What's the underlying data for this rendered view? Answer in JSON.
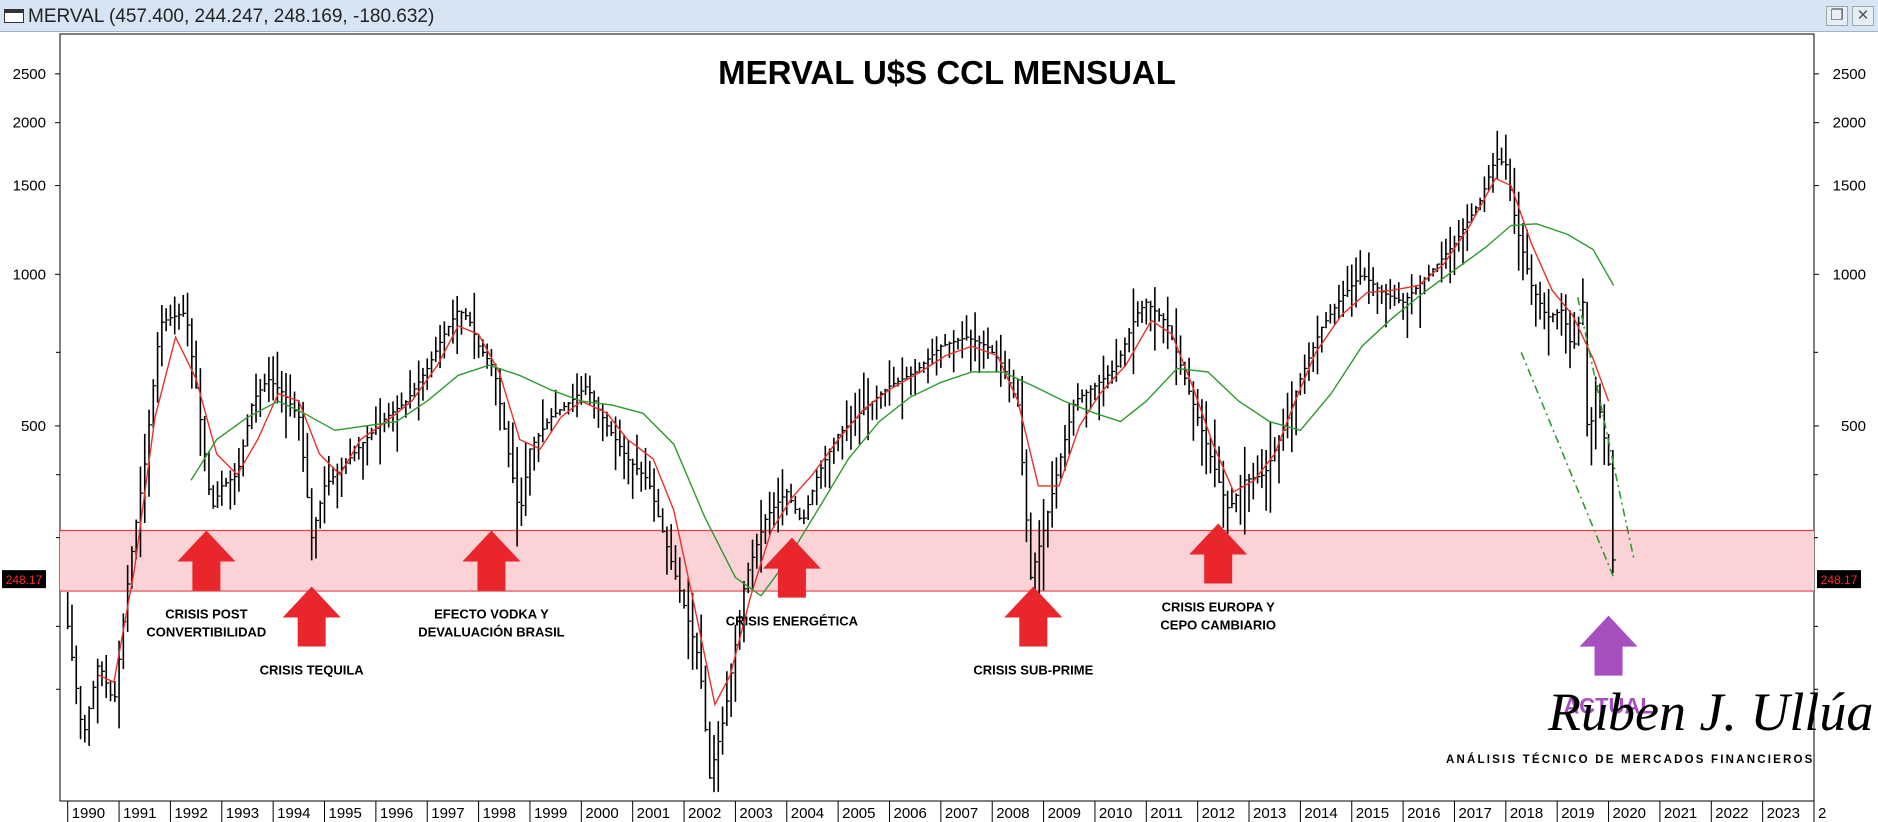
{
  "window": {
    "title": "MERVAL (457.400, 244.247, 248.169, -180.632)",
    "restore_glyph": "❐",
    "close_glyph": "✕"
  },
  "chart_data": {
    "type": "bar",
    "subtype": "ohlc-monthly-log",
    "title": "MERVAL U$S CCL MENSUAL",
    "xlabel": "",
    "ylabel": "",
    "y_scale": "log",
    "ylim": [
      90,
      3000
    ],
    "xlim": [
      1989.85,
      2024.0
    ],
    "y_ticks": [
      500,
      1000,
      1500,
      2000,
      2500
    ],
    "x_ticks": [
      "1990",
      "1991",
      "1992",
      "1993",
      "1994",
      "1995",
      "1996",
      "1997",
      "1998",
      "1999",
      "2000",
      "2001",
      "2002",
      "2003",
      "2004",
      "2005",
      "2006",
      "2007",
      "2008",
      "2009",
      "2010",
      "2011",
      "2012",
      "2013",
      "2014",
      "2015",
      "2016",
      "2017",
      "2018",
      "2019",
      "2020",
      "2021",
      "2022",
      "2023",
      "2"
    ],
    "last_value_label": "248.17",
    "support_band": [
      235,
      310
    ],
    "series": [
      {
        "name": "Price (monthly close)",
        "color": "#000000",
        "points": [
          [
            1990.0,
            200
          ],
          [
            1990.3,
            120
          ],
          [
            1990.6,
            170
          ],
          [
            1990.9,
            140
          ],
          [
            1991.2,
            260
          ],
          [
            1991.5,
            420
          ],
          [
            1991.8,
            800
          ],
          [
            1992.0,
            820
          ],
          [
            1992.3,
            840
          ],
          [
            1992.6,
            500
          ],
          [
            1992.8,
            340
          ],
          [
            1993.0,
            380
          ],
          [
            1993.3,
            400
          ],
          [
            1993.6,
            560
          ],
          [
            1993.9,
            620
          ],
          [
            1994.2,
            580
          ],
          [
            1994.5,
            520
          ],
          [
            1994.75,
            300
          ],
          [
            1995.0,
            380
          ],
          [
            1995.4,
            420
          ],
          [
            1995.8,
            470
          ],
          [
            1996.2,
            520
          ],
          [
            1996.6,
            560
          ],
          [
            1997.0,
            650
          ],
          [
            1997.3,
            750
          ],
          [
            1997.6,
            850
          ],
          [
            1997.8,
            820
          ],
          [
            1998.0,
            720
          ],
          [
            1998.3,
            650
          ],
          [
            1998.6,
            430
          ],
          [
            1998.8,
            330
          ],
          [
            1999.0,
            450
          ],
          [
            1999.4,
            520
          ],
          [
            1999.8,
            560
          ],
          [
            2000.1,
            600
          ],
          [
            2000.5,
            500
          ],
          [
            2000.9,
            430
          ],
          [
            2001.3,
            390
          ],
          [
            2001.7,
            280
          ],
          [
            2002.0,
            220
          ],
          [
            2002.3,
            170
          ],
          [
            2002.5,
            100
          ],
          [
            2002.8,
            135
          ],
          [
            2003.2,
            250
          ],
          [
            2003.6,
            330
          ],
          [
            2004.0,
            370
          ],
          [
            2004.3,
            320
          ],
          [
            2004.6,
            400
          ],
          [
            2005.0,
            480
          ],
          [
            2005.5,
            540
          ],
          [
            2006.0,
            600
          ],
          [
            2006.5,
            640
          ],
          [
            2007.0,
            720
          ],
          [
            2007.5,
            750
          ],
          [
            2007.9,
            720
          ],
          [
            2008.2,
            660
          ],
          [
            2008.5,
            550
          ],
          [
            2008.75,
            250
          ],
          [
            2009.0,
            310
          ],
          [
            2009.3,
            420
          ],
          [
            2009.6,
            560
          ],
          [
            2010.0,
            600
          ],
          [
            2010.4,
            650
          ],
          [
            2010.8,
            830
          ],
          [
            2011.0,
            880
          ],
          [
            2011.4,
            800
          ],
          [
            2011.8,
            600
          ],
          [
            2012.2,
            450
          ],
          [
            2012.6,
            340
          ],
          [
            2012.9,
            390
          ],
          [
            2013.3,
            400
          ],
          [
            2013.7,
            500
          ],
          [
            2014.0,
            620
          ],
          [
            2014.4,
            780
          ],
          [
            2014.8,
            900
          ],
          [
            2015.2,
            1000
          ],
          [
            2015.6,
            920
          ],
          [
            2016.0,
            880
          ],
          [
            2016.5,
            1000
          ],
          [
            2017.0,
            1150
          ],
          [
            2017.5,
            1400
          ],
          [
            2017.8,
            1700
          ],
          [
            2018.0,
            1650
          ],
          [
            2018.2,
            1250
          ],
          [
            2018.5,
            950
          ],
          [
            2018.8,
            820
          ],
          [
            2019.1,
            850
          ],
          [
            2019.3,
            700
          ],
          [
            2019.5,
            880
          ],
          [
            2019.6,
            450
          ],
          [
            2019.75,
            600
          ],
          [
            2020.0,
            420
          ],
          [
            2020.1,
            248.17
          ]
        ]
      },
      {
        "name": "Moving average (short)",
        "color": "#e8312a",
        "points": [
          [
            1990.6,
            160
          ],
          [
            1990.9,
            155
          ],
          [
            1991.3,
            260
          ],
          [
            1991.7,
            520
          ],
          [
            1992.1,
            750
          ],
          [
            1992.5,
            620
          ],
          [
            1992.9,
            440
          ],
          [
            1993.3,
            400
          ],
          [
            1993.7,
            470
          ],
          [
            1994.1,
            580
          ],
          [
            1994.5,
            560
          ],
          [
            1994.9,
            440
          ],
          [
            1995.3,
            400
          ],
          [
            1995.7,
            470
          ],
          [
            1996.2,
            510
          ],
          [
            1996.7,
            560
          ],
          [
            1997.2,
            660
          ],
          [
            1997.6,
            790
          ],
          [
            1998.0,
            760
          ],
          [
            1998.4,
            640
          ],
          [
            1998.8,
            470
          ],
          [
            1999.2,
            450
          ],
          [
            1999.6,
            520
          ],
          [
            2000.0,
            560
          ],
          [
            2000.5,
            530
          ],
          [
            2000.9,
            470
          ],
          [
            2001.4,
            430
          ],
          [
            2001.8,
            340
          ],
          [
            2002.2,
            220
          ],
          [
            2002.6,
            140
          ],
          [
            2002.9,
            160
          ],
          [
            2003.3,
            230
          ],
          [
            2003.7,
            310
          ],
          [
            2004.1,
            360
          ],
          [
            2004.5,
            400
          ],
          [
            2005.0,
            470
          ],
          [
            2005.5,
            540
          ],
          [
            2006.0,
            590
          ],
          [
            2006.6,
            640
          ],
          [
            2007.1,
            690
          ],
          [
            2007.6,
            720
          ],
          [
            2008.1,
            690
          ],
          [
            2008.5,
            560
          ],
          [
            2008.9,
            380
          ],
          [
            2009.3,
            380
          ],
          [
            2009.7,
            500
          ],
          [
            2010.1,
            580
          ],
          [
            2010.6,
            660
          ],
          [
            2011.1,
            810
          ],
          [
            2011.5,
            760
          ],
          [
            2011.9,
            600
          ],
          [
            2012.3,
            460
          ],
          [
            2012.7,
            370
          ],
          [
            2013.1,
            390
          ],
          [
            2013.5,
            440
          ],
          [
            2013.9,
            560
          ],
          [
            2014.3,
            700
          ],
          [
            2014.8,
            830
          ],
          [
            2015.3,
            920
          ],
          [
            2015.8,
            930
          ],
          [
            2016.3,
            950
          ],
          [
            2016.8,
            1050
          ],
          [
            2017.3,
            1250
          ],
          [
            2017.8,
            1550
          ],
          [
            2018.1,
            1500
          ],
          [
            2018.5,
            1150
          ],
          [
            2018.9,
            930
          ],
          [
            2019.3,
            830
          ],
          [
            2019.7,
            680
          ],
          [
            2020.0,
            560
          ]
        ]
      },
      {
        "name": "Moving average (long)",
        "color": "#2e9a2e",
        "points": [
          [
            1992.4,
            390
          ],
          [
            1992.9,
            470
          ],
          [
            1993.5,
            520
          ],
          [
            1994.1,
            560
          ],
          [
            1994.6,
            530
          ],
          [
            1995.2,
            490
          ],
          [
            1995.8,
            500
          ],
          [
            1996.4,
            510
          ],
          [
            1997.0,
            560
          ],
          [
            1997.6,
            630
          ],
          [
            1998.2,
            660
          ],
          [
            1998.8,
            630
          ],
          [
            1999.4,
            590
          ],
          [
            2000.0,
            560
          ],
          [
            2000.6,
            550
          ],
          [
            2001.2,
            530
          ],
          [
            2001.8,
            460
          ],
          [
            2002.4,
            330
          ],
          [
            2003.0,
            250
          ],
          [
            2003.5,
            230
          ],
          [
            2004.0,
            270
          ],
          [
            2004.6,
            340
          ],
          [
            2005.2,
            430
          ],
          [
            2005.8,
            510
          ],
          [
            2006.4,
            570
          ],
          [
            2007.0,
            610
          ],
          [
            2007.6,
            640
          ],
          [
            2008.2,
            640
          ],
          [
            2008.8,
            600
          ],
          [
            2009.4,
            560
          ],
          [
            2010.0,
            530
          ],
          [
            2010.5,
            510
          ],
          [
            2011.0,
            560
          ],
          [
            2011.6,
            650
          ],
          [
            2012.2,
            640
          ],
          [
            2012.8,
            560
          ],
          [
            2013.4,
            510
          ],
          [
            2014.0,
            490
          ],
          [
            2014.6,
            580
          ],
          [
            2015.2,
            720
          ],
          [
            2015.8,
            820
          ],
          [
            2016.4,
            920
          ],
          [
            2017.0,
            1020
          ],
          [
            2017.6,
            1130
          ],
          [
            2018.1,
            1250
          ],
          [
            2018.6,
            1260
          ],
          [
            2019.2,
            1200
          ],
          [
            2019.7,
            1120
          ],
          [
            2020.1,
            950
          ]
        ]
      }
    ],
    "trendlines": [
      {
        "name": "dash-dot-1",
        "color": "#2e9a2e",
        "points": [
          [
            2018.3,
            700
          ],
          [
            2020.1,
            250
          ]
        ]
      },
      {
        "name": "dash-dot-2",
        "color": "#2e9a2e",
        "points": [
          [
            2019.4,
            900
          ],
          [
            2020.5,
            270
          ]
        ]
      }
    ],
    "annotations": [
      {
        "lines": [
          "CRISIS POST",
          "CONVERTIBILIDAD"
        ],
        "x": 1992.7,
        "arrow": "up",
        "color": "#e8262b",
        "arrow_y": 310
      },
      {
        "lines": [
          "CRISIS TEQUILA"
        ],
        "x": 1994.75,
        "arrow": "up",
        "color": "#e8262b",
        "arrow_y": 240
      },
      {
        "lines": [
          "EFECTO VODKA Y",
          "DEVALUACIÓN BRASIL"
        ],
        "x": 1998.25,
        "arrow": "up",
        "color": "#e8262b",
        "arrow_y": 310
      },
      {
        "lines": [
          "CRISIS ENERGÉTICA"
        ],
        "x": 2004.1,
        "arrow": "up",
        "color": "#e8262b",
        "arrow_y": 300
      },
      {
        "lines": [
          "CRISIS SUB-PRIME"
        ],
        "x": 2008.8,
        "arrow": "up",
        "color": "#e8262b",
        "arrow_y": 240
      },
      {
        "lines": [
          "CRISIS EUROPA Y",
          "CEPO CAMBIARIO"
        ],
        "x": 2012.4,
        "arrow": "up",
        "color": "#e8262b",
        "arrow_y": 320
      },
      {
        "lines": [
          "ACTUAL"
        ],
        "x": 2020.0,
        "arrow": "up",
        "color": "#a64fbf",
        "arrow_y": 210
      }
    ],
    "watermark": {
      "name": "Ruben J. Ullúa",
      "subtitle": "ANÁLISIS TÉCNICO DE MERCADOS FINANCIEROS"
    }
  }
}
